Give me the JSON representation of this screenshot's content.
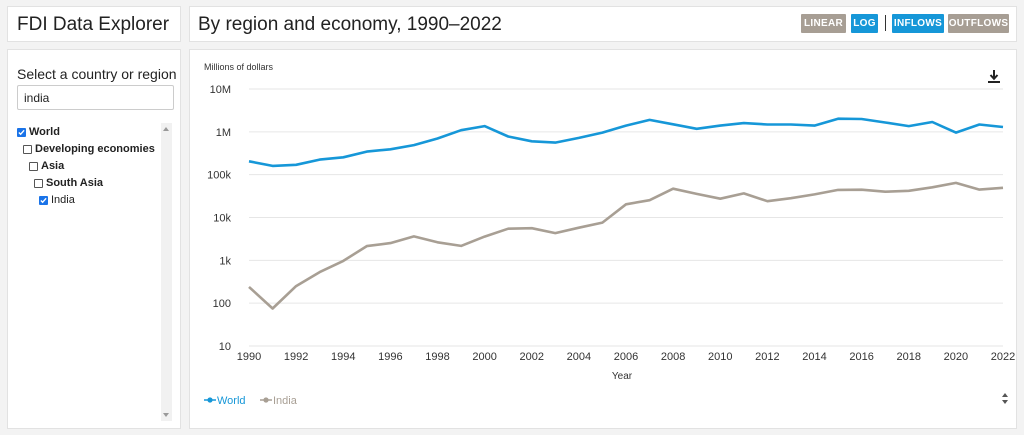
{
  "app": {
    "title": "FDI Data Explorer"
  },
  "header": {
    "title": "By region and economy, 1990–2022",
    "buttons": {
      "linear": "LINEAR",
      "log": "LOG",
      "inflows": "INFLOWS",
      "outflows": "OUTFLOWS"
    },
    "active": [
      "log",
      "inflows"
    ]
  },
  "sidebar": {
    "heading": "Select a country or region",
    "search_value": "india",
    "tree": [
      {
        "label": "World",
        "checked": true,
        "level": 0
      },
      {
        "label": "Developing economies",
        "checked": false,
        "level": 1
      },
      {
        "label": "Asia",
        "checked": false,
        "level": 2
      },
      {
        "label": "South Asia",
        "checked": false,
        "level": 3
      },
      {
        "label": "India",
        "checked": true,
        "level": 4
      }
    ]
  },
  "colors": {
    "world": "#1697d8",
    "india": "#a89f94",
    "active": "#1697d8",
    "inactive": "#a79e94"
  },
  "chart_data": {
    "type": "line",
    "title": "By region and economy, 1990–2022",
    "ylabel": "Millions of dollars",
    "xlabel": "Year",
    "yscale": "log",
    "ylim": [
      10,
      10000000
    ],
    "yticks": [
      "10",
      "100",
      "1k",
      "10k",
      "100k",
      "1M",
      "10M"
    ],
    "xticks": [
      "1990",
      "1992",
      "1994",
      "1996",
      "1998",
      "2000",
      "2002",
      "2004",
      "2006",
      "2008",
      "2010",
      "2012",
      "2014",
      "2016",
      "2018",
      "2020",
      "2022"
    ],
    "x": [
      1990,
      1991,
      1992,
      1993,
      1994,
      1995,
      1996,
      1997,
      1998,
      1999,
      2000,
      2001,
      2002,
      2003,
      2004,
      2005,
      2006,
      2007,
      2008,
      2009,
      2010,
      2011,
      2012,
      2013,
      2014,
      2015,
      2016,
      2017,
      2018,
      2019,
      2020,
      2021,
      2022
    ],
    "series": [
      {
        "name": "World",
        "values": [
          205000,
          160000,
          170000,
          225000,
          255000,
          345000,
          390000,
          490000,
          700000,
          1090000,
          1360000,
          780000,
          600000,
          560000,
          720000,
          960000,
          1400000,
          1900000,
          1500000,
          1180000,
          1400000,
          1600000,
          1480000,
          1480000,
          1400000,
          2030000,
          1990000,
          1650000,
          1360000,
          1700000,
          960000,
          1480000,
          1300000
        ]
      },
      {
        "name": "India",
        "values": [
          240,
          75,
          250,
          530,
          970,
          2150,
          2530,
          3620,
          2630,
          2170,
          3590,
          5470,
          5630,
          4320,
          5770,
          7620,
          20300,
          25300,
          47100,
          35600,
          27400,
          36500,
          24000,
          28200,
          34600,
          44100,
          44500,
          40000,
          42100,
          50600,
          64400,
          44700,
          49400
        ]
      }
    ],
    "legend": "bottom-left"
  },
  "icons": {
    "download": "download-icon",
    "scroll": "scroll-arrows-icon"
  }
}
